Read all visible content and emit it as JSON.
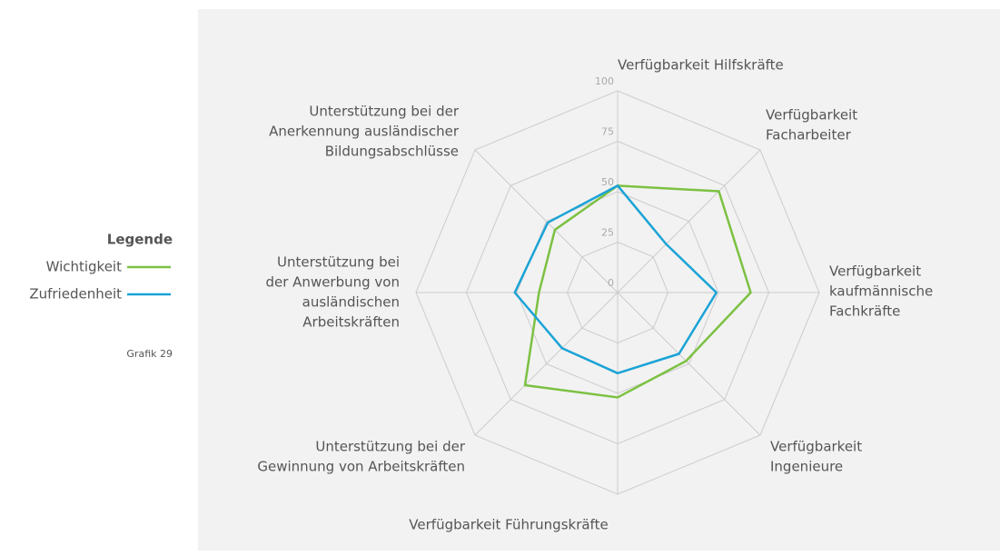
{
  "chart_data": {
    "type": "radar",
    "legend_title": "Legende",
    "note": "Grafik 29",
    "categories": [
      [
        "Verfügbarkeit Hilfskräfte"
      ],
      [
        "Verfügbarkeit",
        "Facharbeiter"
      ],
      [
        "Verfügbarkeit",
        "kaufmännische",
        "Fachkräfte"
      ],
      [
        "Verfügbarkeit",
        "Ingenieure"
      ],
      [
        "Verfügbarkeit Führungskräfte"
      ],
      [
        "Unterstützung bei der",
        "Gewinnung von Arbeitskräften"
      ],
      [
        "Unterstützung bei",
        "der Anwerbung von",
        "ausländischen",
        "Arbeitskräften"
      ],
      [
        "Unterstützung bei der",
        "Anerkennung  ausländischer",
        "Bildungsabschlüsse"
      ]
    ],
    "series": [
      {
        "name": "Wichtigkeit",
        "color": "#7cc142",
        "values": [
          53,
          71,
          66,
          48,
          52,
          65,
          39,
          44
        ]
      },
      {
        "name": "Zufriedenheit",
        "color": "#1aa3d6",
        "values": [
          53,
          34,
          49,
          43,
          40,
          39,
          51,
          49
        ]
      }
    ],
    "rlim": [
      0,
      100
    ],
    "rticks": [
      0,
      25,
      50,
      75,
      100
    ],
    "grid": true,
    "legend": "left"
  }
}
